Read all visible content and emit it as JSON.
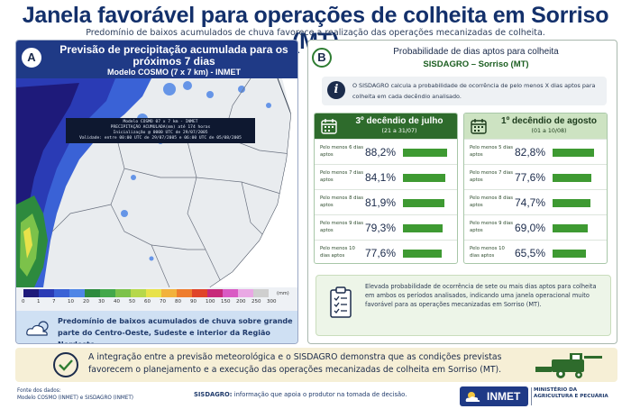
{
  "header": {
    "title": "Janela favorável para operações de colheita em Sorriso (MT)",
    "subtitle": "Predomínio de baixos acumulados de chuva favorece a realização das operações mecanizadas de colheita."
  },
  "panel_a": {
    "badge": "A",
    "title": "Previsão de precipitação acumulada para os próximos 7 dias",
    "model": "Modelo COSMO (7 x 7 km) - INMET",
    "map_info": [
      "Modelo COSMO 07 x 7 km - INMET",
      "PRECIPITAÇÃO ACUMULADA(mm) até 174 horas",
      "Inicialização @ 0000 UTC de 29/07/2005",
      "Validade: entre 00:00 UTC de 29/07/2005 e 06:00 UTC de 05/08/2005"
    ],
    "legend": {
      "unit": "(mm)",
      "ticks": [
        "0",
        "1",
        "7",
        "10",
        "20",
        "30",
        "40",
        "50",
        "60",
        "70",
        "80",
        "90",
        "100",
        "150",
        "200",
        "250",
        "300"
      ],
      "colors": [
        "#1e1a7a",
        "#2a3bb5",
        "#3a62d6",
        "#4f86e6",
        "#2d8a3e",
        "#43a84a",
        "#7cc24a",
        "#b6d84a",
        "#e8e24a",
        "#f2b23c",
        "#ee7d2e",
        "#e0452a",
        "#c72a7a",
        "#d95bc4",
        "#e9a8e4",
        "#cfcfcf"
      ]
    },
    "note": "Predomínio de baixos acumulados de chuva sobre grande parte do Centro-Oeste, Sudeste e interior da Região Nordeste."
  },
  "panel_b": {
    "badge": "B",
    "title": "Probabilidade de dias aptos para colheita",
    "subtitle": "SISDAGRO – Sorriso (MT)",
    "info": "O SISDAGRO calcula a probabilidade de ocorrência de pelo menos X dias aptos para colheita em cada decêndio analisado.",
    "decendio_1": {
      "title": "3º decêndio de julho",
      "range": "(21 a 31/07)",
      "rows": [
        {
          "label": "Pelo menos 6 dias aptos",
          "value": "88,2%",
          "fraction": 0.882
        },
        {
          "label": "Pelo menos 7 dias aptos",
          "value": "84,1%",
          "fraction": 0.841
        },
        {
          "label": "Pelo menos 8 dias aptos",
          "value": "81,9%",
          "fraction": 0.819
        },
        {
          "label": "Pelo menos 9 dias aptos",
          "value": "79,3%",
          "fraction": 0.793
        },
        {
          "label": "Pelo menos 10 dias aptos",
          "value": "77,6%",
          "fraction": 0.776
        }
      ]
    },
    "decendio_2": {
      "title": "1º decêndio de agosto",
      "range": "(01 a 10/08)",
      "rows": [
        {
          "label": "Pelo menos 5 dias aptos",
          "value": "82,8%",
          "fraction": 0.828
        },
        {
          "label": "Pelo menos 7 dias aptos",
          "value": "77,6%",
          "fraction": 0.776
        },
        {
          "label": "Pelo menos 8 dias aptos",
          "value": "74,7%",
          "fraction": 0.747
        },
        {
          "label": "Pelo menos 9 dias aptos",
          "value": "69,0%",
          "fraction": 0.69
        },
        {
          "label": "Pelo menos 10 dias aptos",
          "value": "65,5%",
          "fraction": 0.655
        }
      ]
    },
    "conclusion": "Elevada probabilidade de ocorrência de sete ou mais dias aptos para colheita em ambos os períodos analisados, indicando uma janela operacional muito favorável para as operações mecanizadas em Sorriso (MT)."
  },
  "banner": {
    "text": "A integração entre a previsão meteorológica e o SISDAGRO demonstra que as condições previstas favorecem o planejamento e a execução das operações mecanizadas de colheita em Sorriso (MT)."
  },
  "footer": {
    "source_label": "Fonte dos dados:",
    "source": "Modelo COSMO (INMET) e SISDAGRO (INMET)",
    "sisdagro_label": "SISDAGRO:",
    "sisdagro_text": "informação que apoia o produtor na tomada de decisão.",
    "logo_text": "INMET",
    "ministry_1": "MINISTÉRIO DA",
    "ministry_2": "AGRICULTURA E PECUÁRIA"
  }
}
